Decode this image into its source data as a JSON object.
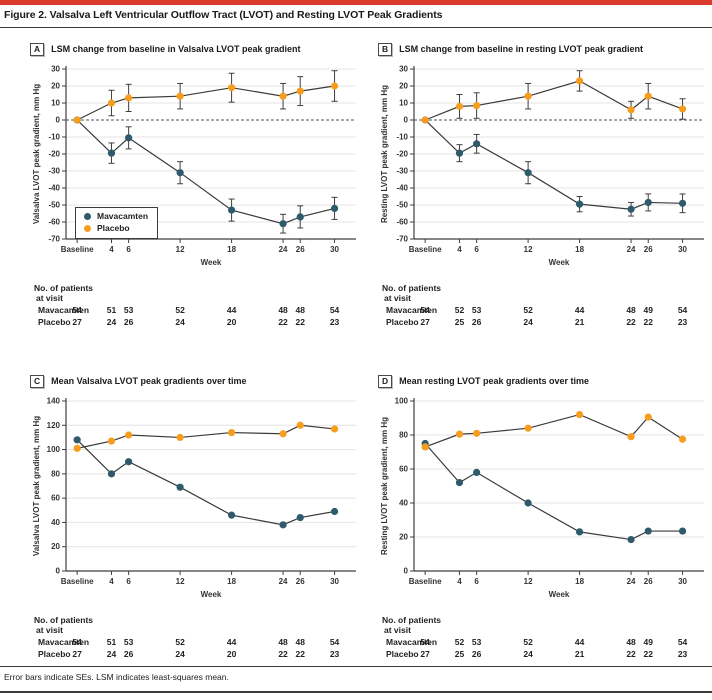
{
  "figure": {
    "title": "Figure 2. Valsalva Left Ventricular Outflow Tract (LVOT) and Resting LVOT Peak Gradients",
    "footnote": "Error bars indicate SEs. LSM indicates least-squares mean."
  },
  "colors": {
    "mavacamten": "#2E5A6B",
    "placebo": "#F79D1E",
    "line": "#3A3A3A",
    "axis": "#3F3F3F",
    "grid": "#E4E4E4",
    "zero_dash": "#555555",
    "accent_red": "#D93A2B"
  },
  "patients_heading": {
    "line1": "No. of patients",
    "line2": "at visit"
  },
  "chart_data": [
    {
      "id": "A",
      "panel_label": "A",
      "type": "line",
      "title": "LSM change from baseline in Valsalva LVOT peak gradient",
      "ylabel": "Valsalva LVOT peak gradient, mm Hg",
      "xlabel": "Week",
      "ylim": [
        -70,
        30
      ],
      "ytick_step": 10,
      "zero_line_dashed": true,
      "show_legend": true,
      "weeks": [
        0,
        4,
        6,
        12,
        18,
        24,
        26,
        30
      ],
      "xticklabels": [
        "Baseline",
        "4",
        "6",
        "12",
        "18",
        "24",
        "26",
        "30"
      ],
      "series": [
        {
          "key": "mavacamten",
          "name": "Mavacamten",
          "values": [
            0,
            -19.5,
            -10.5,
            -31,
            -53,
            -61,
            -57,
            -52
          ],
          "se": [
            0,
            6,
            6.5,
            6.5,
            6.5,
            5.5,
            6.5,
            6.5
          ],
          "patients": [
            54,
            51,
            53,
            52,
            44,
            48,
            48,
            54
          ]
        },
        {
          "key": "placebo",
          "name": "Placebo",
          "values": [
            0,
            10,
            13,
            14,
            19,
            14,
            17,
            20
          ],
          "se": [
            0,
            7.5,
            8,
            7.5,
            8.5,
            7.5,
            8.5,
            9
          ],
          "patients": [
            27,
            24,
            26,
            24,
            20,
            22,
            22,
            23
          ]
        }
      ]
    },
    {
      "id": "B",
      "panel_label": "B",
      "type": "line",
      "title": "LSM change from baseline in resting LVOT peak gradient",
      "ylabel": "Resting LVOT peak gradient, mm Hg",
      "xlabel": "Week",
      "ylim": [
        -70,
        30
      ],
      "ytick_step": 10,
      "zero_line_dashed": true,
      "show_legend": false,
      "weeks": [
        0,
        4,
        6,
        12,
        18,
        24,
        26,
        30
      ],
      "xticklabels": [
        "Baseline",
        "4",
        "6",
        "12",
        "18",
        "24",
        "26",
        "30"
      ],
      "series": [
        {
          "key": "mavacamten",
          "name": "Mavacamten",
          "values": [
            0,
            -19.5,
            -14,
            -31,
            -49.5,
            -52.5,
            -48.5,
            -49
          ],
          "se": [
            0,
            5,
            5.5,
            6.5,
            4.5,
            4,
            5,
            5.5
          ],
          "patients": [
            54,
            52,
            53,
            52,
            44,
            48,
            49,
            54
          ]
        },
        {
          "key": "placebo",
          "name": "Placebo",
          "values": [
            0,
            8,
            8.5,
            14,
            23,
            6,
            14,
            6.5
          ],
          "se": [
            0,
            7,
            7.5,
            7.5,
            6,
            5,
            7.5,
            6
          ],
          "patients": [
            27,
            25,
            26,
            24,
            21,
            22,
            22,
            23
          ]
        }
      ]
    },
    {
      "id": "C",
      "panel_label": "C",
      "type": "line",
      "title": "Mean Valsalva LVOT peak gradients over time",
      "ylabel": "Valsalva LVOT peak gradient, mm Hg",
      "xlabel": "Week",
      "ylim": [
        0,
        140
      ],
      "ytick_step": 20,
      "zero_line_dashed": false,
      "show_legend": false,
      "weeks": [
        0,
        4,
        6,
        12,
        18,
        24,
        26,
        30
      ],
      "xticklabels": [
        "Baseline",
        "4",
        "6",
        "12",
        "18",
        "24",
        "26",
        "30"
      ],
      "series": [
        {
          "key": "mavacamten",
          "name": "Mavacamten",
          "values": [
            108,
            80,
            90,
            69,
            46,
            38,
            44,
            49
          ],
          "patients": [
            54,
            51,
            53,
            52,
            44,
            48,
            48,
            54
          ]
        },
        {
          "key": "placebo",
          "name": "Placebo",
          "values": [
            101,
            107,
            112,
            110,
            114,
            113,
            120,
            117
          ],
          "patients": [
            27,
            24,
            26,
            24,
            20,
            22,
            22,
            23
          ]
        }
      ]
    },
    {
      "id": "D",
      "panel_label": "D",
      "type": "line",
      "title": "Mean resting LVOT peak gradients over time",
      "ylabel": "Resting LVOT peak gradient, mm Hg",
      "xlabel": "Week",
      "ylim": [
        0,
        100
      ],
      "ytick_step": 20,
      "zero_line_dashed": false,
      "show_legend": false,
      "weeks": [
        0,
        4,
        6,
        12,
        18,
        24,
        26,
        30
      ],
      "xticklabels": [
        "Baseline",
        "4",
        "6",
        "12",
        "18",
        "24",
        "26",
        "30"
      ],
      "series": [
        {
          "key": "mavacamten",
          "name": "Mavacamten",
          "values": [
            75,
            52,
            58,
            40,
            23,
            18.5,
            23.5,
            23.5
          ],
          "patients": [
            54,
            52,
            53,
            52,
            44,
            48,
            49,
            54
          ]
        },
        {
          "key": "placebo",
          "name": "Placebo",
          "values": [
            73,
            80.5,
            81,
            84,
            92,
            79,
            90.5,
            77.5
          ],
          "patients": [
            27,
            25,
            26,
            24,
            21,
            22,
            22,
            23
          ]
        }
      ]
    }
  ]
}
